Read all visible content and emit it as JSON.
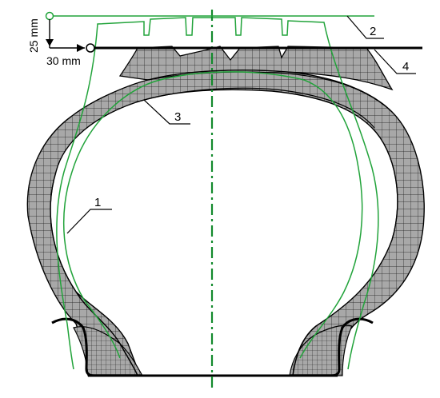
{
  "dimensions": {
    "vertical": "25 mm",
    "horizontal": "30 mm"
  },
  "callouts": [
    "1",
    "2",
    "3",
    "4"
  ],
  "colors": {
    "mesh_fill": "#a8a8a8",
    "mesh_line": "#000000",
    "profile_green": "#21a33a",
    "axis_green": "#138a2c",
    "rim_black": "#000000"
  }
}
